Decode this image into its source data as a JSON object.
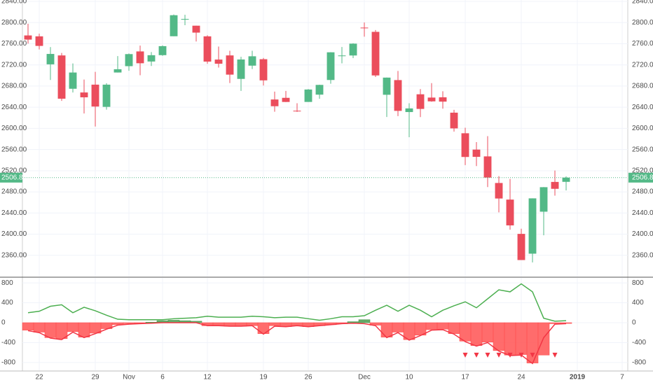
{
  "chart_data": [
    {
      "type": "candlestick",
      "open": [
        2775.66,
        2773.94,
        2721.03,
        2737.87,
        2674.88,
        2667.86,
        2682.65,
        2640.68,
        2705.6,
        2717.58,
        2745.45,
        2726.37,
        2738.4,
        2774.13,
        2806.38,
        2794.1,
        2773.93,
        2730.05,
        2737.9,
        2693.52,
        2718.54,
        2730.74,
        2654.6,
        2657.74,
        2633.36,
        2649.97,
        2663.75,
        2691.45,
        2736.97,
        2737.76,
        2790.5,
        2782.43,
        2663.51,
        2691.26,
        2630.86,
        2664.44,
        2658.23,
        2658.7,
        2629.68,
        2590.75,
        2559.9,
        2547.05,
        2496.77,
        2465.38,
        2400.56,
        2363.12,
        2442.5,
        2498.77,
        2498.94
      ],
      "high": [
        2797.77,
        2778.94,
        2753.59,
        2742.59,
        2722.7,
        2692.38,
        2706.85,
        2685.43,
        2736.69,
        2741.67,
        2756.55,
        2744.27,
        2756.82,
        2815.15,
        2814.75,
        2794.1,
        2775.99,
        2754.6,
        2746.8,
        2735.38,
        2746.75,
        2733.16,
        2669.44,
        2670.73,
        2647.55,
        2674.35,
        2682.53,
        2744.0,
        2753.75,
        2760.88,
        2800.18,
        2785.93,
        2696.15,
        2708.54,
        2647.51,
        2674.35,
        2685.44,
        2670.19,
        2635.07,
        2601.13,
        2573.99,
        2585.29,
        2509.63,
        2504.41,
        2410.34,
        2467.76,
        2489.1,
        2520.27,
        2509.24
      ],
      "low": [
        2760.27,
        2749.22,
        2691.43,
        2651.89,
        2667.84,
        2628.16,
        2603.54,
        2635.34,
        2705.6,
        2708.85,
        2700.44,
        2717.94,
        2737.08,
        2774.13,
        2794.99,
        2764.24,
        2722.0,
        2714.98,
        2685.75,
        2670.75,
        2712.16,
        2681.09,
        2631.52,
        2649.82,
        2631.09,
        2649.97,
        2655.89,
        2684.38,
        2722.94,
        2732.76,
        2773.38,
        2697.18,
        2621.53,
        2623.14,
        2583.23,
        2621.3,
        2650.26,
        2637.27,
        2593.84,
        2530.54,
        2528.71,
        2488.96,
        2441.18,
        2408.55,
        2351.1,
        2346.58,
        2397.94,
        2472.89,
        2482.82
      ],
      "close": [
        2767.78,
        2755.88,
        2740.69,
        2656.1,
        2705.57,
        2658.69,
        2641.25,
        2682.63,
        2711.74,
        2740.37,
        2723.06,
        2738.31,
        2755.45,
        2813.89,
        2806.83,
        2781.01,
        2726.22,
        2722.18,
        2701.58,
        2730.2,
        2736.27,
        2690.73,
        2641.89,
        2649.93,
        2632.56,
        2673.45,
        2682.17,
        2743.79,
        2737.8,
        2760.17,
        2790.37,
        2700.06,
        2695.95,
        2633.08,
        2637.72,
        2636.78,
        2651.07,
        2650.54,
        2599.95,
        2545.94,
        2546.16,
        2506.96,
        2467.42,
        2416.62,
        2351.1,
        2467.7,
        2488.83,
        2485.74,
        2506.85
      ],
      "up_color": "#53b987",
      "down_color": "#eb4d5c",
      "xlim": [
        -0.5,
        53.5
      ],
      "xticks": [
        {
          "value": 1,
          "label": "22"
        },
        {
          "value": 6,
          "label": "29"
        },
        {
          "value": 9,
          "label": "Nov"
        },
        {
          "value": 12,
          "label": "6"
        },
        {
          "value": 16,
          "label": "12"
        },
        {
          "value": 21,
          "label": "19"
        },
        {
          "value": 25,
          "label": "26"
        },
        {
          "value": 30,
          "label": "Dec"
        },
        {
          "value": 34,
          "label": "10"
        },
        {
          "value": 39,
          "label": "17"
        },
        {
          "value": 44,
          "label": "24"
        },
        {
          "value": 49,
          "label": "2019"
        },
        {
          "value": 53,
          "label": "7"
        }
      ],
      "ylim": [
        2320,
        2840
      ],
      "yticks": [
        {
          "value": 2360,
          "label": "2360.00"
        },
        {
          "value": 2400,
          "label": "2400.00"
        },
        {
          "value": 2440,
          "label": "2440.00"
        },
        {
          "value": 2480,
          "label": "2480.00"
        },
        {
          "value": 2520,
          "label": "2520.00"
        },
        {
          "value": 2560,
          "label": "2560.00"
        },
        {
          "value": 2600,
          "label": "2600.00"
        },
        {
          "value": 2640,
          "label": "2640.00"
        },
        {
          "value": 2680,
          "label": "2680.00"
        },
        {
          "value": 2720,
          "label": "2720.00"
        },
        {
          "value": 2760,
          "label": "2760.00"
        },
        {
          "value": 2800,
          "label": "2800.00"
        },
        {
          "value": 2840,
          "label": "2840.00"
        }
      ],
      "grid": true,
      "last_price": 2506.85,
      "last_price_color": "#53b987"
    },
    {
      "type": "indicator",
      "ylim": [
        -900,
        900
      ],
      "yticks": [
        -800,
        -400,
        0,
        400,
        800
      ],
      "series": [
        {
          "type": "bar",
          "color": "#ff5252",
          "positive_color": "#4a9a4e",
          "values": [
            -150,
            -190,
            -300,
            -320,
            -180,
            -290,
            -210,
            -120,
            -40,
            -20,
            -10,
            10,
            40,
            50,
            40,
            30,
            -60,
            -60,
            -70,
            -70,
            -60,
            -220,
            -60,
            -80,
            -60,
            -80,
            -60,
            -40,
            -20,
            20,
            60,
            -50,
            -290,
            -190,
            -340,
            -250,
            -140,
            -130,
            -220,
            -370,
            -460,
            -390,
            -560,
            -650,
            -640,
            -810,
            -650,
            -20,
            -15
          ]
        },
        {
          "type": "line",
          "color": "#4caf50",
          "values": [
            200,
            230,
            330,
            360,
            200,
            310,
            240,
            150,
            70,
            60,
            60,
            60,
            60,
            80,
            90,
            100,
            130,
            110,
            110,
            110,
            130,
            120,
            100,
            110,
            110,
            80,
            50,
            80,
            120,
            120,
            140,
            250,
            350,
            230,
            350,
            250,
            120,
            250,
            340,
            420,
            300,
            480,
            660,
            620,
            780,
            620,
            90,
            30,
            40
          ]
        },
        {
          "type": "line",
          "color": "#f23645",
          "values": [
            -160,
            -200,
            -310,
            -340,
            -190,
            -300,
            -220,
            -130,
            -50,
            -30,
            -20,
            -10,
            0,
            0,
            0,
            0,
            -60,
            -60,
            -70,
            -70,
            -60,
            -230,
            -70,
            -80,
            -60,
            -80,
            -60,
            -40,
            -20,
            -10,
            -20,
            -60,
            -300,
            -200,
            -350,
            -260,
            -150,
            -140,
            -230,
            -380,
            -470,
            -400,
            -570,
            -660,
            -650,
            -820,
            -300,
            -30,
            -20
          ]
        },
        {
          "type": "marker",
          "color": "#f23645",
          "values": [
            null,
            null,
            null,
            null,
            null,
            null,
            null,
            null,
            null,
            null,
            null,
            null,
            null,
            null,
            null,
            null,
            null,
            null,
            null,
            null,
            null,
            null,
            null,
            null,
            null,
            null,
            null,
            null,
            null,
            null,
            null,
            null,
            null,
            null,
            null,
            null,
            null,
            null,
            null,
            -660,
            -660,
            -660,
            -660,
            -660,
            -660,
            -660,
            null,
            -660,
            null
          ]
        }
      ]
    }
  ]
}
